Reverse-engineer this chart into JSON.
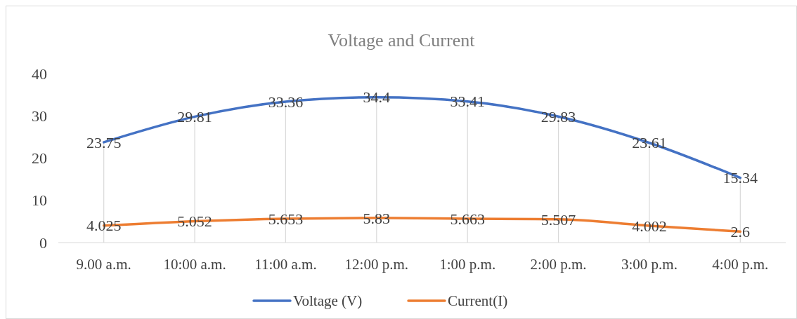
{
  "chart_data": {
    "type": "line",
    "title": "Voltage and Current",
    "categories": [
      "9.00 a.m.",
      "10:00 a.m.",
      "11:00 a.m.",
      "12:00 p.m.",
      "1:00 p.m.",
      "2:00 p.m.",
      "3:00 p.m.",
      "4:00 p.m."
    ],
    "series": [
      {
        "name": "Voltage (V)",
        "color": "#4472c4",
        "values": [
          23.75,
          29.81,
          33.36,
          34.4,
          33.41,
          29.83,
          23.61,
          15.34
        ]
      },
      {
        "name": "Current(I)",
        "color": "#ed7d31",
        "values": [
          4.025,
          5.052,
          5.653,
          5.83,
          5.663,
          5.507,
          4.002,
          2.6
        ]
      }
    ],
    "ylim": [
      0,
      40
    ],
    "yticks": [
      0,
      10,
      20,
      30,
      40
    ],
    "grid": "x",
    "data_labels": true,
    "legend": "bottom",
    "marker": "none",
    "line_style": "solid"
  }
}
